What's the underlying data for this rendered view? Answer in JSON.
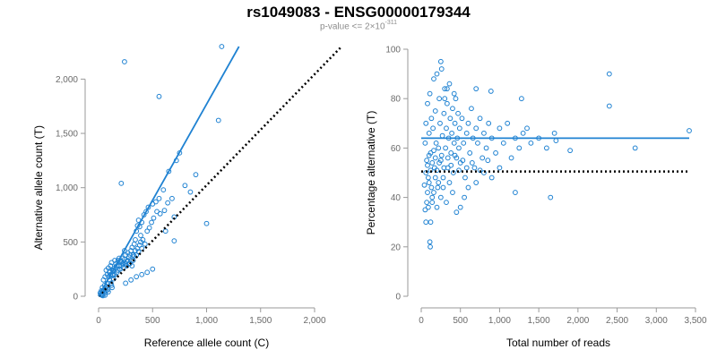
{
  "figure": {
    "title": "rs1049083 - ENSG00000179344",
    "subtitle_prefix": "p-value <= 2",
    "subtitle_times": "×",
    "subtitle_base": "10",
    "subtitle_exp": "-311"
  },
  "colors": {
    "points": "#1f82d2",
    "fit": "#1f82d2",
    "reference": "#000000",
    "axis": "#9a9a9a",
    "tick_text": "#6a6a6a"
  },
  "chart_data": [
    {
      "type": "scatter",
      "xlabel": "Reference allele count (C)",
      "ylabel": "Alternative allele count (T)",
      "xlim": [
        0,
        2000
      ],
      "ylim": [
        0,
        2300
      ],
      "xticks": [
        0,
        500,
        1000,
        1500,
        2000
      ],
      "xtick_labels": [
        "0",
        "500",
        "1,000",
        "1,500",
        "2,000"
      ],
      "yticks": [
        0,
        500,
        1000,
        1500,
        2000
      ],
      "ytick_labels": [
        "0",
        "500",
        "1,000",
        "1,500",
        "2,000"
      ],
      "grid": false,
      "fit_line": {
        "x": [
          0,
          1300
        ],
        "y": [
          0,
          2300
        ]
      },
      "reference_line": {
        "x": [
          0,
          2250
        ],
        "y": [
          0,
          2300
        ]
      },
      "points": [
        [
          30,
          40
        ],
        [
          40,
          20
        ],
        [
          50,
          60
        ],
        [
          60,
          30
        ],
        [
          35,
          80
        ],
        [
          55,
          100
        ],
        [
          70,
          50
        ],
        [
          80,
          120
        ],
        [
          45,
          150
        ],
        [
          65,
          70
        ],
        [
          90,
          40
        ],
        [
          100,
          150
        ],
        [
          110,
          200
        ],
        [
          75,
          90
        ],
        [
          85,
          60
        ],
        [
          95,
          180
        ],
        [
          120,
          100
        ],
        [
          130,
          240
        ],
        [
          140,
          160
        ],
        [
          150,
          200
        ],
        [
          105,
          230
        ],
        [
          115,
          120
        ],
        [
          125,
          80
        ],
        [
          135,
          190
        ],
        [
          145,
          260
        ],
        [
          160,
          300
        ],
        [
          170,
          220
        ],
        [
          180,
          330
        ],
        [
          190,
          280
        ],
        [
          200,
          250
        ],
        [
          210,
          320
        ],
        [
          220,
          350
        ],
        [
          230,
          300
        ],
        [
          240,
          340
        ],
        [
          250,
          380
        ],
        [
          260,
          320
        ],
        [
          270,
          400
        ],
        [
          280,
          360
        ],
        [
          290,
          300
        ],
        [
          300,
          420
        ],
        [
          310,
          450
        ],
        [
          320,
          380
        ],
        [
          330,
          480
        ],
        [
          340,
          520
        ],
        [
          350,
          600
        ],
        [
          360,
          650
        ],
        [
          370,
          700
        ],
        [
          380,
          640
        ],
        [
          390,
          560
        ],
        [
          400,
          680
        ],
        [
          420,
          750
        ],
        [
          440,
          780
        ],
        [
          460,
          820
        ],
        [
          500,
          850
        ],
        [
          530,
          870
        ],
        [
          560,
          900
        ],
        [
          600,
          980
        ],
        [
          650,
          1150
        ],
        [
          700,
          730
        ],
        [
          720,
          1250
        ],
        [
          750,
          1320
        ],
        [
          800,
          1020
        ],
        [
          850,
          960
        ],
        [
          900,
          1120
        ],
        [
          60,
          180
        ],
        [
          70,
          240
        ],
        [
          80,
          200
        ],
        [
          90,
          260
        ],
        [
          100,
          220
        ],
        [
          110,
          280
        ],
        [
          120,
          310
        ],
        [
          130,
          200
        ],
        [
          140,
          240
        ],
        [
          150,
          330
        ],
        [
          160,
          260
        ],
        [
          170,
          280
        ],
        [
          180,
          240
        ],
        [
          190,
          350
        ],
        [
          200,
          320
        ],
        [
          210,
          280
        ],
        [
          220,
          300
        ],
        [
          230,
          260
        ],
        [
          240,
          420
        ],
        [
          250,
          300
        ],
        [
          260,
          280
        ],
        [
          270,
          330
        ],
        [
          280,
          300
        ],
        [
          290,
          380
        ],
        [
          300,
          330
        ],
        [
          310,
          280
        ],
        [
          320,
          330
        ],
        [
          330,
          370
        ],
        [
          340,
          420
        ],
        [
          350,
          380
        ],
        [
          360,
          440
        ],
        [
          370,
          410
        ],
        [
          380,
          470
        ],
        [
          390,
          500
        ],
        [
          400,
          440
        ],
        [
          410,
          520
        ],
        [
          430,
          480
        ],
        [
          450,
          600
        ],
        [
          470,
          630
        ],
        [
          490,
          680
        ],
        [
          510,
          720
        ],
        [
          540,
          780
        ],
        [
          570,
          760
        ],
        [
          610,
          790
        ],
        [
          640,
          860
        ],
        [
          680,
          900
        ],
        [
          620,
          600
        ],
        [
          700,
          510
        ],
        [
          1000,
          670
        ],
        [
          210,
          1040
        ],
        [
          240,
          2160
        ],
        [
          560,
          1840
        ],
        [
          1110,
          1620
        ],
        [
          1140,
          2300
        ],
        [
          300,
          150
        ],
        [
          400,
          200
        ],
        [
          500,
          250
        ],
        [
          350,
          180
        ],
        [
          450,
          220
        ],
        [
          250,
          120
        ],
        [
          30,
          10
        ],
        [
          20,
          15
        ],
        [
          15,
          30
        ],
        [
          25,
          50
        ],
        [
          40,
          5
        ],
        [
          60,
          10
        ]
      ]
    },
    {
      "type": "scatter",
      "xlabel": "Total number of reads",
      "ylabel": "Percentage alternative (T)",
      "xlim": [
        0,
        3500
      ],
      "ylim": [
        0,
        100
      ],
      "xticks": [
        0,
        500,
        1000,
        1500,
        2000,
        2500,
        3000,
        3500
      ],
      "xtick_labels": [
        "0",
        "500",
        "1,000",
        "1,500",
        "2,000",
        "2,500",
        "3,000",
        "3,500"
      ],
      "yticks": [
        0,
        20,
        40,
        60,
        80,
        100
      ],
      "ytick_labels": [
        "0",
        "20",
        "40",
        "60",
        "80",
        "100"
      ],
      "grid": false,
      "fit_line": {
        "x": [
          0,
          3420
        ],
        "y": [
          64,
          64
        ]
      },
      "reference_line": {
        "x": [
          0,
          3420
        ],
        "y": [
          50.5,
          50.5
        ]
      },
      "points": [
        [
          40,
          45
        ],
        [
          50,
          62
        ],
        [
          60,
          70
        ],
        [
          70,
          55
        ],
        [
          80,
          78
        ],
        [
          90,
          48
        ],
        [
          100,
          66
        ],
        [
          110,
          82
        ],
        [
          120,
          58
        ],
        [
          130,
          72
        ],
        [
          140,
          40
        ],
        [
          150,
          68
        ],
        [
          160,
          88
        ],
        [
          170,
          52
        ],
        [
          180,
          75
        ],
        [
          190,
          62
        ],
        [
          200,
          90
        ],
        [
          210,
          44
        ],
        [
          220,
          60
        ],
        [
          230,
          80
        ],
        [
          240,
          70
        ],
        [
          250,
          55
        ],
        [
          260,
          92
        ],
        [
          270,
          65
        ],
        [
          280,
          48
        ],
        [
          290,
          74
        ],
        [
          300,
          84
        ],
        [
          310,
          60
        ],
        [
          320,
          68
        ],
        [
          330,
          78
        ],
        [
          340,
          52
        ],
        [
          350,
          64
        ],
        [
          360,
          86
        ],
        [
          370,
          72
        ],
        [
          380,
          58
        ],
        [
          390,
          66
        ],
        [
          400,
          76
        ],
        [
          410,
          50
        ],
        [
          420,
          62
        ],
        [
          430,
          70
        ],
        [
          440,
          80
        ],
        [
          450,
          56
        ],
        [
          460,
          64
        ],
        [
          470,
          74
        ],
        [
          480,
          60
        ],
        [
          490,
          68
        ],
        [
          500,
          54
        ],
        [
          520,
          72
        ],
        [
          540,
          62
        ],
        [
          560,
          48
        ],
        [
          580,
          66
        ],
        [
          600,
          70
        ],
        [
          620,
          58
        ],
        [
          640,
          76
        ],
        [
          660,
          64
        ],
        [
          680,
          52
        ],
        [
          700,
          68
        ],
        [
          720,
          62
        ],
        [
          750,
          72
        ],
        [
          780,
          56
        ],
        [
          800,
          66
        ],
        [
          830,
          60
        ],
        [
          860,
          70
        ],
        [
          900,
          64
        ],
        [
          950,
          58
        ],
        [
          1000,
          68
        ],
        [
          1050,
          62
        ],
        [
          1100,
          70
        ],
        [
          1150,
          56
        ],
        [
          1200,
          64
        ],
        [
          1250,
          60
        ],
        [
          1300,
          66
        ],
        [
          1350,
          68
        ],
        [
          1400,
          62
        ],
        [
          1500,
          64
        ],
        [
          1600,
          60
        ],
        [
          1700,
          66
        ],
        [
          50,
          35
        ],
        [
          60,
          30
        ],
        [
          70,
          38
        ],
        [
          80,
          42
        ],
        [
          90,
          36
        ],
        [
          100,
          46
        ],
        [
          110,
          22
        ],
        [
          115,
          20
        ],
        [
          120,
          30
        ],
        [
          130,
          44
        ],
        [
          140,
          38
        ],
        [
          160,
          42
        ],
        [
          180,
          48
        ],
        [
          200,
          36
        ],
        [
          220,
          46
        ],
        [
          250,
          40
        ],
        [
          280,
          44
        ],
        [
          320,
          38
        ],
        [
          360,
          46
        ],
        [
          400,
          42
        ],
        [
          450,
          34
        ],
        [
          500,
          36
        ],
        [
          550,
          40
        ],
        [
          600,
          44
        ],
        [
          700,
          46
        ],
        [
          800,
          50
        ],
        [
          900,
          48
        ],
        [
          1000,
          52
        ],
        [
          1200,
          42
        ],
        [
          1650,
          40
        ],
        [
          250,
          95
        ],
        [
          330,
          84
        ],
        [
          420,
          82
        ],
        [
          300,
          80
        ],
        [
          1280,
          80
        ],
        [
          890,
          83
        ],
        [
          1720,
          63
        ],
        [
          1900,
          59
        ],
        [
          2400,
          90
        ],
        [
          2400,
          77
        ],
        [
          2730,
          60
        ],
        [
          3420,
          67
        ],
        [
          700,
          84
        ],
        [
          60,
          50
        ],
        [
          80,
          53
        ],
        [
          100,
          57
        ],
        [
          120,
          51
        ],
        [
          140,
          54
        ],
        [
          160,
          59
        ],
        [
          180,
          56
        ],
        [
          200,
          51
        ],
        [
          230,
          54
        ],
        [
          260,
          57
        ],
        [
          290,
          52
        ],
        [
          340,
          56
        ],
        [
          380,
          53
        ],
        [
          430,
          57
        ],
        [
          480,
          51
        ],
        [
          530,
          55
        ],
        [
          580,
          52
        ],
        [
          650,
          54
        ],
        [
          750,
          51
        ],
        [
          850,
          55
        ]
      ]
    }
  ]
}
